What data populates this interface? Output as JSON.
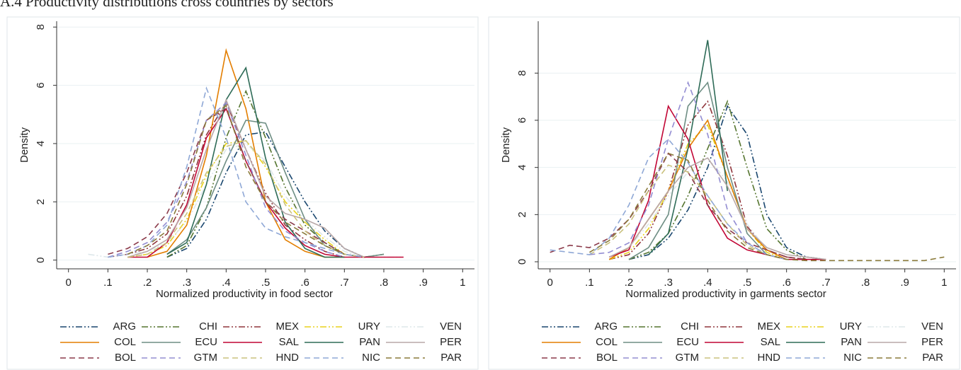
{
  "heading": "A.4 Productivity distributions cross countries by sectors",
  "chart_data": [
    {
      "type": "line",
      "x_label": "Normalized productivity in food sector",
      "y_label": "Density",
      "xlim": [
        -0.03,
        1.03
      ],
      "ylim": [
        -0.3,
        8.2
      ],
      "xticks": [
        0,
        {
          "value": 0.1,
          "label": ".1"
        },
        {
          "value": 0.2,
          "label": ".2"
        },
        {
          "value": 0.3,
          "label": ".3"
        },
        {
          "value": 0.4,
          "label": ".4"
        },
        {
          "value": 0.5,
          "label": ".5"
        },
        {
          "value": 0.6,
          "label": ".6"
        },
        {
          "value": 0.7,
          "label": ".7"
        },
        {
          "value": 0.8,
          "label": ".8"
        },
        {
          "value": 0.9,
          "label": ".9"
        },
        1
      ],
      "yticks": [
        0,
        2,
        4,
        6,
        8
      ],
      "grid": true,
      "x": [
        0.05,
        0.1,
        0.15,
        0.2,
        0.25,
        0.3,
        0.35,
        0.4,
        0.45,
        0.5,
        0.55,
        0.6,
        0.65,
        0.7,
        0.75,
        0.8,
        0.85
      ],
      "series": [
        {
          "name": "ARG",
          "color": "#1a476f",
          "dash": "dashdot",
          "values": [
            null,
            null,
            null,
            null,
            0.1,
            0.4,
            1.4,
            3.0,
            4.3,
            4.4,
            3.2,
            2.0,
            1.0,
            0.4,
            0.1,
            null,
            null
          ]
        },
        {
          "name": "CHI",
          "color": "#55752f",
          "dash": "dashdot",
          "values": [
            null,
            null,
            null,
            null,
            0.1,
            0.5,
            1.8,
            4.2,
            5.8,
            4.2,
            2.5,
            1.2,
            0.6,
            0.2,
            0.1,
            0.2,
            null
          ]
        },
        {
          "name": "MEX",
          "color": "#90353b",
          "dash": "dashdot",
          "values": [
            null,
            0.1,
            0.2,
            0.4,
            0.9,
            2.2,
            4.3,
            5.4,
            3.8,
            2.3,
            1.2,
            0.7,
            0.3,
            0.1,
            null,
            null,
            null
          ]
        },
        {
          "name": "URY",
          "color": "#e8d21d",
          "dash": "dashdot",
          "values": [
            null,
            null,
            0.1,
            0.2,
            0.5,
            1.4,
            2.9,
            4.0,
            4.1,
            3.2,
            2.0,
            1.3,
            0.7,
            0.2,
            0.1,
            null,
            null
          ]
        },
        {
          "name": "VEN",
          "color": "#dde7ea",
          "dash": "dashdot",
          "values": [
            0.2,
            0.1,
            0.2,
            0.3,
            0.6,
            1.3,
            2.6,
            3.8,
            4.0,
            3.4,
            2.2,
            1.4,
            0.8,
            0.3,
            0.1,
            0.1,
            0.1
          ]
        },
        {
          "name": "COL",
          "color": "#e37e00",
          "dash": "solid",
          "values": [
            null,
            null,
            null,
            0.1,
            0.3,
            1.2,
            3.6,
            7.2,
            5.2,
            2.0,
            0.7,
            0.3,
            0.1,
            0.1,
            null,
            null,
            null
          ]
        },
        {
          "name": "ECU",
          "color": "#6e8e84",
          "dash": "solid",
          "values": [
            null,
            null,
            null,
            null,
            0.2,
            0.7,
            1.8,
            3.4,
            4.8,
            4.7,
            3.0,
            1.4,
            0.5,
            0.2,
            0.1,
            0.2,
            null
          ]
        },
        {
          "name": "SAL",
          "color": "#c10534",
          "dash": "solid",
          "values": [
            null,
            null,
            0.1,
            0.1,
            0.6,
            1.9,
            4.2,
            5.2,
            3.4,
            2.0,
            1.1,
            0.5,
            0.2,
            0.1,
            0.1,
            0.1,
            0.1
          ]
        },
        {
          "name": "PAN",
          "color": "#2e6b57",
          "dash": "solid",
          "values": [
            null,
            null,
            null,
            null,
            0.2,
            0.6,
            2.6,
            5.5,
            6.6,
            3.5,
            1.3,
            0.4,
            0.1,
            0.1,
            null,
            null,
            null
          ]
        },
        {
          "name": "PER",
          "color": "#b8a8a8",
          "dash": "solid",
          "values": [
            null,
            null,
            0.1,
            0.3,
            0.7,
            1.8,
            3.8,
            5.5,
            3.8,
            2.2,
            1.6,
            1.4,
            1.1,
            0.4,
            0.1,
            null,
            null
          ]
        },
        {
          "name": "BOL",
          "color": "#8b3a4a",
          "dash": "dashed",
          "values": [
            null,
            0.2,
            0.4,
            0.8,
            1.6,
            3.0,
            4.8,
            5.2,
            3.4,
            2.0,
            1.4,
            1.0,
            0.6,
            0.2,
            0.1,
            null,
            null
          ]
        },
        {
          "name": "GTM",
          "color": "#938dd2",
          "dash": "dashed",
          "values": [
            null,
            0.1,
            0.3,
            0.6,
            1.3,
            2.7,
            4.8,
            5.4,
            3.6,
            1.8,
            1.0,
            0.6,
            0.3,
            0.1,
            null,
            null,
            null
          ]
        },
        {
          "name": "HND",
          "color": "#cac27e",
          "dash": "dashed",
          "values": [
            null,
            null,
            0.1,
            0.2,
            0.6,
            1.6,
            3.0,
            3.9,
            4.1,
            3.3,
            1.9,
            1.0,
            0.5,
            0.2,
            0.1,
            null,
            null
          ]
        },
        {
          "name": "NIC",
          "color": "#8fa8d6",
          "dash": "dashed",
          "values": [
            null,
            0.1,
            0.2,
            0.5,
            1.2,
            3.2,
            5.9,
            4.2,
            2.0,
            1.1,
            0.8,
            0.6,
            0.4,
            0.2,
            0.1,
            null,
            null
          ]
        },
        {
          "name": "PAR",
          "color": "#8a7a3a",
          "dash": "dashed",
          "values": [
            null,
            null,
            0.2,
            0.5,
            1.0,
            2.6,
            4.8,
            5.3,
            3.2,
            2.0,
            1.3,
            0.9,
            0.5,
            0.2,
            null,
            null,
            null
          ]
        }
      ]
    },
    {
      "type": "line",
      "x_label": "Normalized productivity in garments sector",
      "y_label": "Density",
      "xlim": [
        -0.03,
        1.03
      ],
      "ylim": [
        -0.3,
        10.2
      ],
      "xticks": [
        0,
        {
          "value": 0.1,
          "label": ".1"
        },
        {
          "value": 0.2,
          "label": ".2"
        },
        {
          "value": 0.3,
          "label": ".3"
        },
        {
          "value": 0.4,
          "label": ".4"
        },
        {
          "value": 0.5,
          "label": ".5"
        },
        {
          "value": 0.6,
          "label": ".6"
        },
        {
          "value": 0.7,
          "label": ".7"
        },
        {
          "value": 0.8,
          "label": ".8"
        },
        {
          "value": 0.9,
          "label": ".9"
        },
        1
      ],
      "yticks": [
        0,
        2,
        4,
        6,
        8
      ],
      "grid": true,
      "x": [
        0,
        0.05,
        0.1,
        0.15,
        0.2,
        0.25,
        0.3,
        0.35,
        0.4,
        0.45,
        0.5,
        0.55,
        0.6,
        0.65,
        0.7,
        0.75,
        0.8,
        0.85,
        0.9,
        0.95,
        1
      ],
      "series": [
        {
          "name": "ARG",
          "color": "#1a476f",
          "dash": "dashdot",
          "values": [
            null,
            null,
            null,
            null,
            0.1,
            0.3,
            1.0,
            2.2,
            4.0,
            6.6,
            5.4,
            2.0,
            0.6,
            0.2,
            0.1,
            null,
            null,
            null,
            null,
            null,
            null
          ]
        },
        {
          "name": "CHI",
          "color": "#55752f",
          "dash": "dashdot",
          "values": [
            null,
            null,
            null,
            null,
            0.1,
            0.4,
            1.2,
            2.8,
            4.8,
            6.8,
            4.0,
            1.4,
            0.5,
            0.1,
            null,
            null,
            null,
            null,
            null,
            null,
            null
          ]
        },
        {
          "name": "MEX",
          "color": "#90353b",
          "dash": "dashdot",
          "values": [
            null,
            null,
            null,
            0.1,
            0.3,
            1.2,
            3.0,
            5.8,
            6.8,
            4.5,
            1.5,
            0.5,
            0.2,
            0.1,
            null,
            null,
            null,
            null,
            null,
            null,
            null
          ]
        },
        {
          "name": "URY",
          "color": "#e8d21d",
          "dash": "dashdot",
          "values": [
            null,
            null,
            null,
            0.1,
            0.4,
            1.4,
            3.0,
            5.0,
            5.8,
            3.6,
            1.4,
            0.4,
            0.1,
            null,
            null,
            null,
            null,
            null,
            null,
            null,
            null
          ]
        },
        {
          "name": "VEN",
          "color": "#dde7ea",
          "dash": "dashdot",
          "values": [
            null,
            null,
            null,
            0.2,
            0.6,
            1.6,
            2.8,
            3.8,
            4.4,
            3.4,
            1.6,
            0.5,
            0.1,
            null,
            null,
            null,
            null,
            null,
            null,
            null,
            null
          ]
        },
        {
          "name": "COL",
          "color": "#e37e00",
          "dash": "solid",
          "values": [
            null,
            null,
            null,
            0.1,
            0.6,
            1.8,
            3.0,
            4.8,
            6.0,
            3.6,
            1.4,
            0.5,
            0.1,
            null,
            null,
            null,
            null,
            null,
            null,
            null,
            null
          ]
        },
        {
          "name": "ECU",
          "color": "#6e8e84",
          "dash": "solid",
          "values": [
            null,
            null,
            null,
            null,
            0.1,
            0.6,
            2.0,
            6.6,
            7.6,
            4.0,
            1.2,
            0.3,
            0.1,
            null,
            null,
            null,
            null,
            null,
            null,
            null,
            null
          ]
        },
        {
          "name": "SAL",
          "color": "#c10534",
          "dash": "solid",
          "values": [
            null,
            null,
            null,
            0.2,
            0.5,
            2.6,
            6.6,
            5.2,
            2.4,
            1.0,
            0.5,
            0.3,
            0.1,
            0.1,
            0.1,
            null,
            null,
            null,
            null,
            null,
            null
          ]
        },
        {
          "name": "PAN",
          "color": "#2e6b57",
          "dash": "solid",
          "values": [
            null,
            null,
            null,
            null,
            null,
            0.3,
            1.2,
            4.8,
            9.4,
            3.0,
            null,
            null,
            null,
            null,
            null,
            null,
            null,
            null,
            null,
            null,
            null
          ]
        },
        {
          "name": "PER",
          "color": "#b8a8a8",
          "dash": "solid",
          "values": [
            null,
            null,
            null,
            0.2,
            0.6,
            1.8,
            3.0,
            4.0,
            4.4,
            3.2,
            1.4,
            0.6,
            0.3,
            0.2,
            0.1,
            null,
            null,
            null,
            null,
            null,
            null
          ]
        },
        {
          "name": "BOL",
          "color": "#8b3a4a",
          "dash": "dashed",
          "values": [
            0.4,
            0.7,
            0.6,
            1.0,
            1.8,
            3.0,
            4.6,
            3.8,
            2.4,
            1.4,
            0.8,
            0.5,
            0.2,
            0.1,
            null,
            null,
            null,
            null,
            null,
            null,
            null
          ]
        },
        {
          "name": "GTM",
          "color": "#938dd2",
          "dash": "dashed",
          "values": [
            null,
            null,
            0.3,
            0.4,
            0.8,
            2.4,
            5.2,
            7.6,
            5.4,
            2.2,
            0.8,
            0.3,
            0.1,
            null,
            null,
            null,
            null,
            null,
            null,
            null,
            null
          ]
        },
        {
          "name": "HND",
          "color": "#cac27e",
          "dash": "dashed",
          "values": [
            null,
            null,
            0.3,
            0.8,
            1.6,
            3.0,
            4.1,
            3.8,
            2.8,
            1.6,
            0.7,
            0.3,
            0.1,
            null,
            null,
            null,
            null,
            null,
            null,
            null,
            null
          ]
        },
        {
          "name": "NIC",
          "color": "#8fa8d6",
          "dash": "dashed",
          "values": [
            0.5,
            0.4,
            0.3,
            1.0,
            2.4,
            4.4,
            5.2,
            4.2,
            2.8,
            1.6,
            0.8,
            0.3,
            0.1,
            null,
            null,
            null,
            null,
            null,
            null,
            null,
            null
          ]
        },
        {
          "name": "PAR",
          "color": "#8a7a3a",
          "dash": "dashed",
          "values": [
            null,
            null,
            0.4,
            0.9,
            1.8,
            3.2,
            4.6,
            4.3,
            2.6,
            1.3,
            0.6,
            0.3,
            0.1,
            0.05,
            0.05,
            0.05,
            0.05,
            0.05,
            0.05,
            0.05,
            0.2
          ]
        }
      ]
    }
  ]
}
